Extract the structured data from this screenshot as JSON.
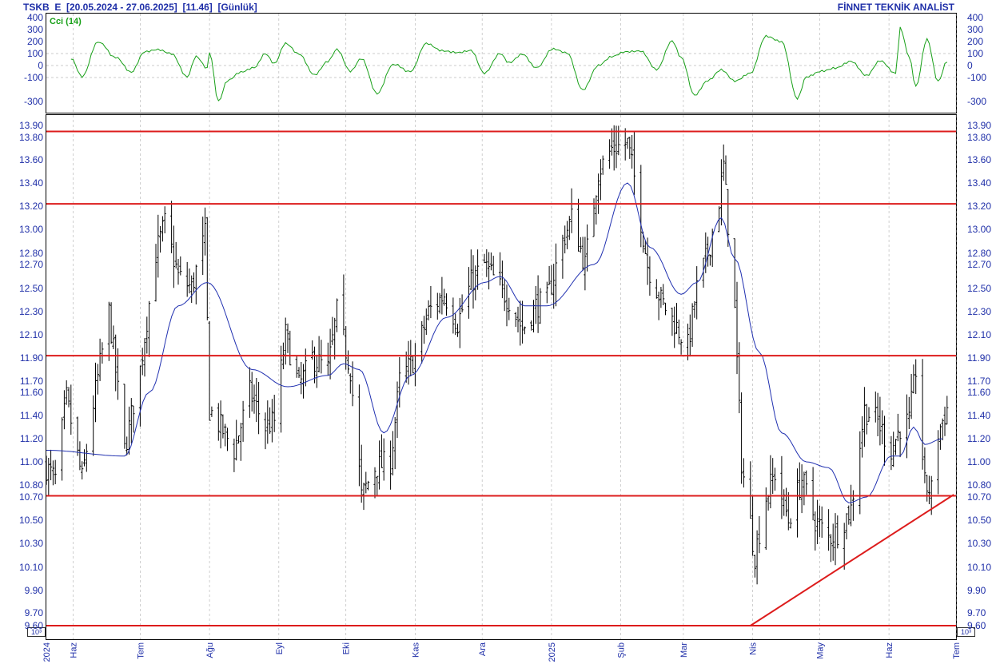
{
  "header": {
    "left": "TSKB  E  [20.05.2024 - 27.06.2025]  [11.46]  [Günlük]",
    "right": "FİNNET TEKNİK ANALİST"
  },
  "unit_label": "10^3",
  "colors": {
    "axis_text": "#1f2fa8",
    "price_bars": "#000000",
    "moving_average": "#2030b0",
    "levels": "#dd1c1c",
    "cci": "#18a018",
    "grid": "#bbbbbb"
  },
  "chart_data": [
    {
      "type": "line",
      "title": "Cci (14)",
      "ylim": [
        -400,
        400
      ],
      "y_ticks": [
        400,
        300,
        200,
        100,
        0,
        -100,
        -300
      ],
      "y_tick_labels": [
        "400",
        "300",
        "200",
        "100",
        "0",
        "-100",
        "-300"
      ],
      "reference_lines": [
        100,
        0,
        -100
      ],
      "series": [
        {
          "name": "Cci (14)",
          "x": [
            "2024-05-31",
            "2024-06-05",
            "2024-06-12",
            "2024-06-20",
            "2024-06-27",
            "2024-07-03",
            "2024-07-09",
            "2024-07-15",
            "2024-07-22",
            "2024-07-26",
            "2024-07-31",
            "2024-08-01",
            "2024-08-05",
            "2024-08-09",
            "2024-08-15",
            "2024-08-21",
            "2024-08-26",
            "2024-08-30",
            "2024-09-04",
            "2024-09-10",
            "2024-09-17",
            "2024-09-23",
            "2024-09-27",
            "2024-10-03",
            "2024-10-08",
            "2024-10-15",
            "2024-10-22",
            "2024-10-30",
            "2024-11-06",
            "2024-11-13",
            "2024-11-20",
            "2024-11-26",
            "2024-12-02",
            "2024-12-09",
            "2024-12-13",
            "2024-12-19",
            "2024-12-25",
            "2025-01-02",
            "2025-01-08",
            "2025-01-15",
            "2025-01-22",
            "2025-01-28",
            "2025-02-03",
            "2025-02-10",
            "2025-02-17",
            "2025-02-24",
            "2025-02-28",
            "2025-03-06",
            "2025-03-12",
            "2025-03-18",
            "2025-03-24",
            "2025-03-31",
            "2025-04-07",
            "2025-04-14",
            "2025-04-21",
            "2025-04-25",
            "2025-05-02",
            "2025-05-08",
            "2025-05-15",
            "2025-05-22",
            "2025-05-28",
            "2025-06-04",
            "2025-06-06",
            "2025-06-10",
            "2025-06-13",
            "2025-06-18",
            "2025-06-23",
            "2025-06-27"
          ],
          "values": [
            60,
            -90,
            200,
            70,
            -60,
            110,
            130,
            100,
            -90,
            80,
            -20,
            110,
            -300,
            -130,
            -60,
            -20,
            100,
            20,
            190,
            100,
            -80,
            30,
            130,
            -50,
            60,
            -230,
            10,
            -50,
            180,
            120,
            110,
            130,
            -60,
            100,
            20,
            90,
            -20,
            140,
            110,
            -200,
            0,
            70,
            110,
            120,
            -30,
            210,
            70,
            -250,
            -130,
            -40,
            -130,
            -60,
            250,
            200,
            -280,
            -100,
            -50,
            -20,
            40,
            -80,
            40,
            -70,
            310,
            70,
            -180,
            220,
            -130,
            40
          ]
        }
      ]
    },
    {
      "type": "ohlc",
      "title": "",
      "ylim": [
        9.6,
        13.95
      ],
      "y_ticks": [
        9.6,
        9.7,
        9.9,
        10.1,
        10.3,
        10.5,
        10.7,
        10.8,
        11.0,
        11.2,
        11.4,
        11.6,
        11.7,
        11.9,
        12.1,
        12.3,
        12.5,
        12.7,
        12.8,
        13.0,
        13.2,
        13.4,
        13.6,
        13.8,
        13.9
      ],
      "y_tick_labels": [
        "9.60",
        "9.70",
        "9.90",
        "10.10",
        "10.30",
        "10.50",
        "10.70",
        "10.80",
        "11.00",
        "11.20",
        "11.40",
        "11.60",
        "11.70",
        "11.90",
        "12.10",
        "12.30",
        "12.50",
        "12.70",
        "12.80",
        "13.00",
        "13.20",
        "13.40",
        "13.60",
        "13.80",
        "13.90"
      ],
      "x_range": [
        "2024-05-20",
        "2025-07-01"
      ],
      "x_ticks": [
        "2024-05-20",
        "2024-06-01",
        "2024-07-01",
        "2024-08-01",
        "2024-09-01",
        "2024-10-01",
        "2024-11-01",
        "2024-12-01",
        "2025-01-01",
        "2025-02-01",
        "2025-03-01",
        "2025-04-01",
        "2025-05-01",
        "2025-06-01",
        "2025-07-01"
      ],
      "x_tick_labels": [
        "2024",
        "Haz",
        "Tem",
        "Ağu",
        "Eyl",
        "Eki",
        "Kas",
        "Ara",
        "2025",
        "Şub",
        "Mar",
        "Nis",
        "May",
        "Haz",
        "Tem"
      ],
      "price_path": {
        "dates": [
          "2024-05-20",
          "2024-05-24",
          "2024-05-29",
          "2024-06-05",
          "2024-06-10",
          "2024-06-17",
          "2024-06-24",
          "2024-07-01",
          "2024-07-08",
          "2024-07-12",
          "2024-07-18",
          "2024-07-24",
          "2024-07-30",
          "2024-08-01",
          "2024-08-06",
          "2024-08-12",
          "2024-08-19",
          "2024-08-26",
          "2024-08-30",
          "2024-09-04",
          "2024-09-10",
          "2024-09-16",
          "2024-09-23",
          "2024-09-27",
          "2024-10-03",
          "2024-10-08",
          "2024-10-14",
          "2024-10-21",
          "2024-10-25",
          "2024-11-01",
          "2024-11-07",
          "2024-11-14",
          "2024-11-20",
          "2024-11-26",
          "2024-12-02",
          "2024-12-09",
          "2024-12-13",
          "2024-12-19",
          "2024-12-25",
          "2024-12-30",
          "2025-01-06",
          "2025-01-10",
          "2025-01-16",
          "2025-01-22",
          "2025-01-28",
          "2025-02-04",
          "2025-02-07",
          "2025-02-13",
          "2025-02-19",
          "2025-02-25",
          "2025-03-03",
          "2025-03-07",
          "2025-03-12",
          "2025-03-17",
          "2025-03-19",
          "2025-03-24",
          "2025-03-27",
          "2025-04-02",
          "2025-04-07",
          "2025-04-11",
          "2025-04-17",
          "2025-04-23",
          "2025-04-29",
          "2025-05-05",
          "2025-05-09",
          "2025-05-15",
          "2025-05-21",
          "2025-05-27",
          "2025-06-02",
          "2025-06-06",
          "2025-06-10",
          "2025-06-13",
          "2025-06-17",
          "2025-06-20",
          "2025-06-23",
          "2025-06-27"
        ],
        "closes": [
          10.95,
          10.85,
          11.55,
          10.85,
          11.5,
          12.3,
          11.1,
          11.8,
          12.8,
          13.05,
          12.6,
          12.5,
          12.95,
          11.45,
          11.3,
          11.1,
          11.6,
          11.3,
          11.35,
          12.1,
          11.65,
          11.9,
          11.8,
          12.3,
          11.8,
          10.7,
          10.95,
          11.0,
          11.7,
          11.9,
          12.3,
          12.45,
          12.2,
          12.55,
          12.7,
          12.5,
          12.4,
          12.15,
          12.35,
          12.4,
          12.9,
          13.1,
          12.7,
          13.5,
          13.7,
          13.75,
          13.45,
          12.7,
          12.4,
          12.2,
          12.0,
          12.5,
          12.8,
          13.25,
          13.55,
          12.3,
          11.0,
          10.2,
          10.7,
          10.9,
          10.5,
          10.85,
          10.5,
          10.35,
          10.4,
          10.6,
          11.45,
          11.35,
          11.1,
          11.3,
          11.35,
          11.8,
          10.8,
          10.75,
          11.25,
          11.46
        ]
      },
      "series": [
        {
          "name": "",
          "x": [
            "2024-05-20",
            "2024-06-24",
            "2024-07-05",
            "2024-07-18",
            "2024-07-31",
            "2024-08-20",
            "2024-09-05",
            "2024-09-23",
            "2024-09-30",
            "2024-10-07",
            "2024-10-18",
            "2024-10-30",
            "2024-11-15",
            "2024-12-02",
            "2024-12-09",
            "2024-12-20",
            "2024-12-30",
            "2025-01-20",
            "2025-02-04",
            "2025-02-14",
            "2025-02-28",
            "2025-03-07",
            "2025-03-18",
            "2025-03-24",
            "2025-04-04",
            "2025-04-14",
            "2025-04-25",
            "2025-05-05",
            "2025-05-14",
            "2025-05-22",
            "2025-06-02",
            "2025-06-06",
            "2025-06-12",
            "2025-06-17",
            "2025-06-25"
          ],
          "values": [
            11.1,
            11.05,
            11.6,
            12.35,
            12.55,
            11.8,
            11.65,
            11.75,
            11.85,
            11.8,
            11.25,
            11.75,
            12.25,
            12.55,
            12.6,
            12.35,
            12.35,
            12.7,
            13.4,
            12.85,
            12.45,
            12.55,
            13.1,
            12.75,
            11.95,
            11.25,
            11.0,
            10.95,
            10.65,
            10.7,
            11.05,
            11.05,
            11.3,
            11.15,
            11.2
          ]
        }
      ],
      "horizontal_levels": [
        13.85,
        13.22,
        11.92,
        10.71,
        9.6
      ],
      "trendline": {
        "from": [
          "2025-03-31",
          9.6
        ],
        "to": [
          "2025-06-30",
          10.72
        ]
      }
    }
  ]
}
